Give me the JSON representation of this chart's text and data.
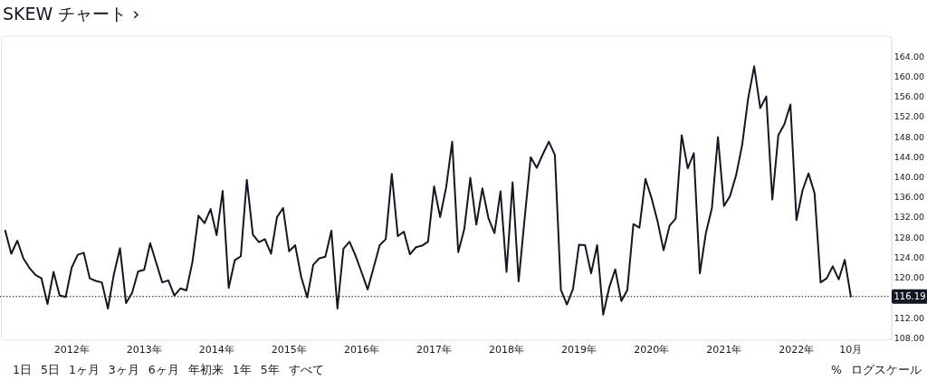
{
  "chart_data": {
    "type": "line",
    "title": "SKEW チャート ›",
    "x": [
      "2011-02",
      "2011-03",
      "2011-04",
      "2011-05",
      "2011-06",
      "2011-07",
      "2011-08",
      "2011-09",
      "2011-10",
      "2011-11",
      "2011-12",
      "2012-01",
      "2012-02",
      "2012-03",
      "2012-04",
      "2012-05",
      "2012-06",
      "2012-07",
      "2012-08",
      "2012-09",
      "2012-10",
      "2012-11",
      "2012-12",
      "2013-01",
      "2013-02",
      "2013-03",
      "2013-04",
      "2013-05",
      "2013-06",
      "2013-07",
      "2013-08",
      "2013-09",
      "2013-10",
      "2013-11",
      "2013-12",
      "2014-01",
      "2014-02",
      "2014-03",
      "2014-04",
      "2014-05",
      "2014-06",
      "2014-07",
      "2014-08",
      "2014-09",
      "2014-10",
      "2014-11",
      "2014-12",
      "2015-01",
      "2015-02",
      "2015-03",
      "2015-04",
      "2015-05",
      "2015-06",
      "2015-07",
      "2015-08",
      "2015-09",
      "2015-10",
      "2015-11",
      "2015-12",
      "2016-01",
      "2016-02",
      "2016-03",
      "2016-04",
      "2016-05",
      "2016-06",
      "2016-07",
      "2016-08",
      "2016-09",
      "2016-10",
      "2016-11",
      "2016-12",
      "2017-01",
      "2017-02",
      "2017-03",
      "2017-04",
      "2017-05",
      "2017-06",
      "2017-07",
      "2017-08",
      "2017-09",
      "2017-10",
      "2017-11",
      "2017-12",
      "2018-01",
      "2018-02",
      "2018-03",
      "2018-04",
      "2018-05",
      "2018-06",
      "2018-07",
      "2018-08",
      "2018-09",
      "2018-10",
      "2018-11",
      "2018-12",
      "2019-01",
      "2019-02",
      "2019-03",
      "2019-04",
      "2019-05",
      "2019-06",
      "2019-07",
      "2019-08",
      "2019-09",
      "2019-10",
      "2019-11",
      "2019-12",
      "2020-01",
      "2020-02",
      "2020-03",
      "2020-04",
      "2020-05",
      "2020-06",
      "2020-07",
      "2020-08",
      "2020-09",
      "2020-10",
      "2020-11",
      "2020-12",
      "2021-01",
      "2021-02",
      "2021-03",
      "2021-04",
      "2021-05",
      "2021-06",
      "2021-07",
      "2021-08",
      "2021-09",
      "2021-10",
      "2021-11",
      "2021-12",
      "2022-01",
      "2022-02",
      "2022-03",
      "2022-04",
      "2022-05",
      "2022-06",
      "2022-07",
      "2022-08",
      "2022-09",
      "2022-10"
    ],
    "series": [
      {
        "color": "#131722",
        "values": [
          129.3,
          124.7,
          127.3,
          123.8,
          121.9,
          120.5,
          119.8,
          114.7,
          121.1,
          116.4,
          116.1,
          121.9,
          124.5,
          124.9,
          119.8,
          119.3,
          119.0,
          113.8,
          120.7,
          125.8,
          114.9,
          116.9,
          121.2,
          121.5,
          126.8,
          122.9,
          119.0,
          119.4,
          116.4,
          117.8,
          117.4,
          123.1,
          132.3,
          130.8,
          133.6,
          128.4,
          137.2,
          117.9,
          123.4,
          124.2,
          139.4,
          128.5,
          127.0,
          127.6,
          124.7,
          132.0,
          133.8,
          125.2,
          126.4,
          120.1,
          116.0,
          122.5,
          123.8,
          124.1,
          129.3,
          113.8,
          125.7,
          127.1,
          124.3,
          121.0,
          117.6,
          122.0,
          126.4,
          127.6,
          140.6,
          128.2,
          129.1,
          124.6,
          126.0,
          126.3,
          127.1,
          138.1,
          132.0,
          137.9,
          147.0,
          125.0,
          129.6,
          139.8,
          130.5,
          137.7,
          131.8,
          128.8,
          137.1,
          121.1,
          138.9,
          119.2,
          131.8,
          143.9,
          141.8,
          144.5,
          147.0,
          144.4,
          117.5,
          114.6,
          117.7,
          126.5,
          126.4,
          120.8,
          126.4,
          112.6,
          118.0,
          121.6,
          115.3,
          117.5,
          130.6,
          129.9,
          139.6,
          135.8,
          131.2,
          125.4,
          130.3,
          131.7,
          148.3,
          141.7,
          144.7,
          120.8,
          128.8,
          133.8,
          147.9,
          134.2,
          136.2,
          140.3,
          146.3,
          155.6,
          162.0,
          153.7,
          156.0,
          135.5,
          148.3,
          150.5,
          154.4,
          131.4,
          137.3,
          140.7,
          136.7,
          119.0,
          119.8,
          122.2,
          119.6,
          123.5,
          116.2
        ]
      }
    ],
    "xlim": [
      "2011-01-05",
      "2023-04-15"
    ],
    "xticks": [
      {
        "value": "2012-01",
        "label": "2012年"
      },
      {
        "value": "2013-01",
        "label": "2013年"
      },
      {
        "value": "2014-01",
        "label": "2014年"
      },
      {
        "value": "2015-01",
        "label": "2015年"
      },
      {
        "value": "2016-01",
        "label": "2016年"
      },
      {
        "value": "2017-01",
        "label": "2017年"
      },
      {
        "value": "2018-01",
        "label": "2018年"
      },
      {
        "value": "2019-01",
        "label": "2019年"
      },
      {
        "value": "2020-01",
        "label": "2020年"
      },
      {
        "value": "2021-01",
        "label": "2021年"
      },
      {
        "value": "2022-01",
        "label": "2022年"
      },
      {
        "value": "2022-10",
        "label": "10月"
      }
    ],
    "ylim": [
      107.5,
      168
    ],
    "yticks": [
      {
        "value": 108,
        "label": "108.00"
      },
      {
        "value": 112,
        "label": "112.00"
      },
      {
        "value": 120,
        "label": "120.00"
      },
      {
        "value": 124,
        "label": "124.00"
      },
      {
        "value": 128,
        "label": "128.00"
      },
      {
        "value": 132,
        "label": "132.00"
      },
      {
        "value": 136,
        "label": "136.00"
      },
      {
        "value": 140,
        "label": "140.00"
      },
      {
        "value": 144,
        "label": "144.00"
      },
      {
        "value": 148,
        "label": "148.00"
      },
      {
        "value": 152,
        "label": "152.00"
      },
      {
        "value": 156,
        "label": "156.00"
      },
      {
        "value": 160,
        "label": "160.00"
      },
      {
        "value": 164,
        "label": "164.00"
      }
    ],
    "ref_lines": [
      {
        "axis": "y",
        "value": 116.19,
        "label": "116.19",
        "line_style": "dotted",
        "color": "#131722"
      }
    ],
    "grid": false,
    "marker": "none",
    "line_style": "solid",
    "annotations": [
      "1日",
      "5日",
      "1ヶ月",
      "3ヶ月",
      "6ヶ月",
      "年初来",
      "1年",
      "5年",
      "すべて",
      "%",
      "ログスケール"
    ]
  }
}
